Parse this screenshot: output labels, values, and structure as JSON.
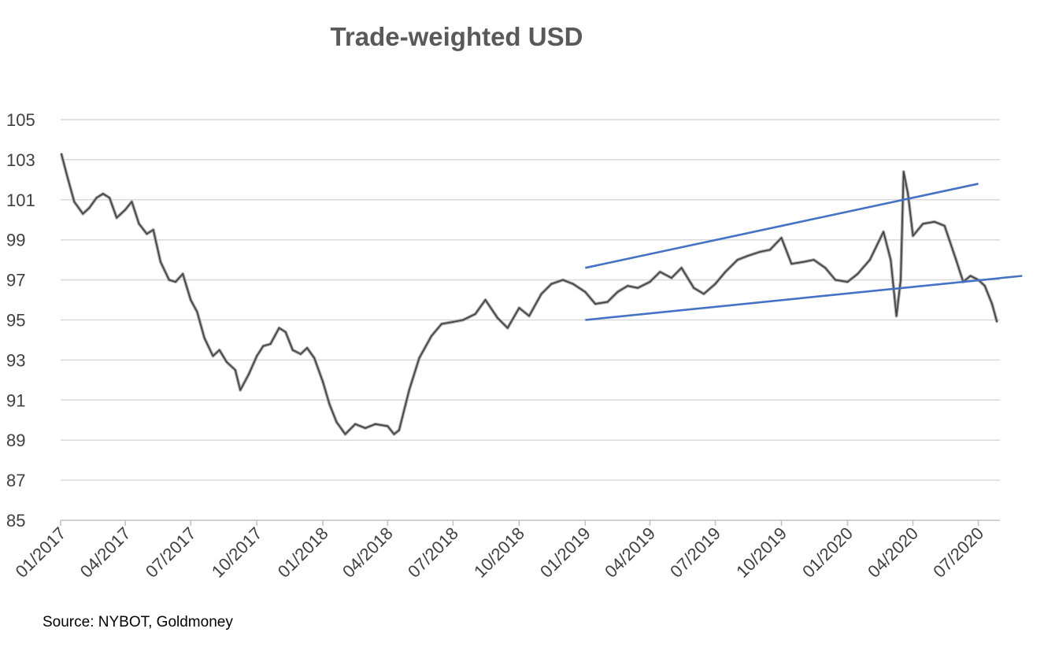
{
  "chart_data": {
    "type": "line",
    "title": "Trade-weighted USD",
    "source": "Source: NYBOT, Goldmoney",
    "ylim": [
      85,
      105
    ],
    "y_ticks": [
      85,
      87,
      89,
      91,
      93,
      95,
      97,
      99,
      101,
      103,
      105
    ],
    "x_range": [
      "2017-01-01",
      "2020-07-31"
    ],
    "x_tick_labels": [
      "01/2017",
      "04/2017",
      "07/2017",
      "10/2017",
      "01/2018",
      "04/2018",
      "07/2018",
      "10/2018",
      "01/2019",
      "04/2019",
      "07/2019",
      "10/2019",
      "01/2020",
      "04/2020",
      "07/2020"
    ],
    "x_tick_dates": [
      "2017-01-01",
      "2017-04-01",
      "2017-07-01",
      "2017-10-01",
      "2018-01-01",
      "2018-04-01",
      "2018-07-01",
      "2018-10-01",
      "2019-01-01",
      "2019-04-01",
      "2019-07-01",
      "2019-10-01",
      "2020-01-01",
      "2020-04-01",
      "2020-07-01"
    ],
    "grid": "horizontal",
    "legend": "none",
    "series": [
      {
        "color": "#404040",
        "x": [
          "2017-01-02",
          "2017-01-10",
          "2017-01-20",
          "2017-02-01",
          "2017-02-10",
          "2017-02-20",
          "2017-03-01",
          "2017-03-10",
          "2017-03-20",
          "2017-04-01",
          "2017-04-10",
          "2017-04-20",
          "2017-05-01",
          "2017-05-10",
          "2017-05-20",
          "2017-06-01",
          "2017-06-10",
          "2017-06-20",
          "2017-07-01",
          "2017-07-10",
          "2017-07-20",
          "2017-08-01",
          "2017-08-10",
          "2017-08-20",
          "2017-09-01",
          "2017-09-08",
          "2017-09-20",
          "2017-10-01",
          "2017-10-10",
          "2017-10-20",
          "2017-11-01",
          "2017-11-10",
          "2017-11-20",
          "2017-12-01",
          "2017-12-10",
          "2017-12-20",
          "2018-01-01",
          "2018-01-10",
          "2018-01-20",
          "2018-02-01",
          "2018-02-15",
          "2018-03-01",
          "2018-03-15",
          "2018-04-01",
          "2018-04-10",
          "2018-04-17",
          "2018-05-01",
          "2018-05-15",
          "2018-06-01",
          "2018-06-15",
          "2018-07-01",
          "2018-07-15",
          "2018-08-01",
          "2018-08-15",
          "2018-09-01",
          "2018-09-15",
          "2018-10-01",
          "2018-10-15",
          "2018-11-01",
          "2018-11-15",
          "2018-12-01",
          "2018-12-15",
          "2019-01-01",
          "2019-01-15",
          "2019-02-01",
          "2019-02-15",
          "2019-03-01",
          "2019-03-15",
          "2019-04-01",
          "2019-04-15",
          "2019-05-01",
          "2019-05-15",
          "2019-06-01",
          "2019-06-15",
          "2019-07-01",
          "2019-07-15",
          "2019-08-01",
          "2019-08-15",
          "2019-09-01",
          "2019-09-15",
          "2019-10-01",
          "2019-10-15",
          "2019-11-01",
          "2019-11-15",
          "2019-12-01",
          "2019-12-15",
          "2020-01-01",
          "2020-01-15",
          "2020-02-01",
          "2020-02-20",
          "2020-03-01",
          "2020-03-09",
          "2020-03-15",
          "2020-03-19",
          "2020-03-25",
          "2020-04-01",
          "2020-04-15",
          "2020-05-01",
          "2020-05-15",
          "2020-06-01",
          "2020-06-10",
          "2020-06-20",
          "2020-07-01",
          "2020-07-10",
          "2020-07-20",
          "2020-07-27"
        ],
        "values": [
          103.3,
          102.2,
          100.9,
          100.3,
          100.6,
          101.1,
          101.3,
          101.1,
          100.1,
          100.5,
          100.9,
          99.8,
          99.3,
          99.5,
          97.9,
          97.0,
          96.9,
          97.3,
          96.0,
          95.4,
          94.1,
          93.2,
          93.5,
          92.9,
          92.5,
          91.5,
          92.3,
          93.2,
          93.7,
          93.8,
          94.6,
          94.4,
          93.5,
          93.3,
          93.6,
          93.1,
          91.9,
          90.8,
          89.9,
          89.3,
          89.8,
          89.6,
          89.8,
          89.7,
          89.3,
          89.5,
          91.5,
          93.1,
          94.2,
          94.8,
          94.9,
          95.0,
          95.3,
          96.0,
          95.1,
          94.6,
          95.6,
          95.2,
          96.3,
          96.8,
          97.0,
          96.8,
          96.4,
          95.8,
          95.9,
          96.4,
          96.7,
          96.6,
          96.9,
          97.4,
          97.1,
          97.6,
          96.6,
          96.3,
          96.8,
          97.4,
          98.0,
          98.2,
          98.4,
          98.5,
          99.1,
          97.8,
          97.9,
          98.0,
          97.6,
          97.0,
          96.9,
          97.3,
          98.0,
          99.4,
          98.0,
          95.2,
          97.0,
          102.4,
          101.3,
          99.2,
          99.8,
          99.9,
          99.7,
          97.9,
          96.9,
          97.2,
          97.0,
          96.7,
          95.8,
          94.9
        ]
      }
    ],
    "annotations": [
      {
        "type": "trendline",
        "color": "#4472c4",
        "from": [
          "2019-01-01",
          97.6
        ],
        "to": [
          "2020-07-01",
          101.8
        ]
      },
      {
        "type": "trendline",
        "color": "#4472c4",
        "from": [
          "2019-01-01",
          95.0
        ],
        "to": [
          "2020-08-31",
          97.2
        ]
      }
    ]
  }
}
